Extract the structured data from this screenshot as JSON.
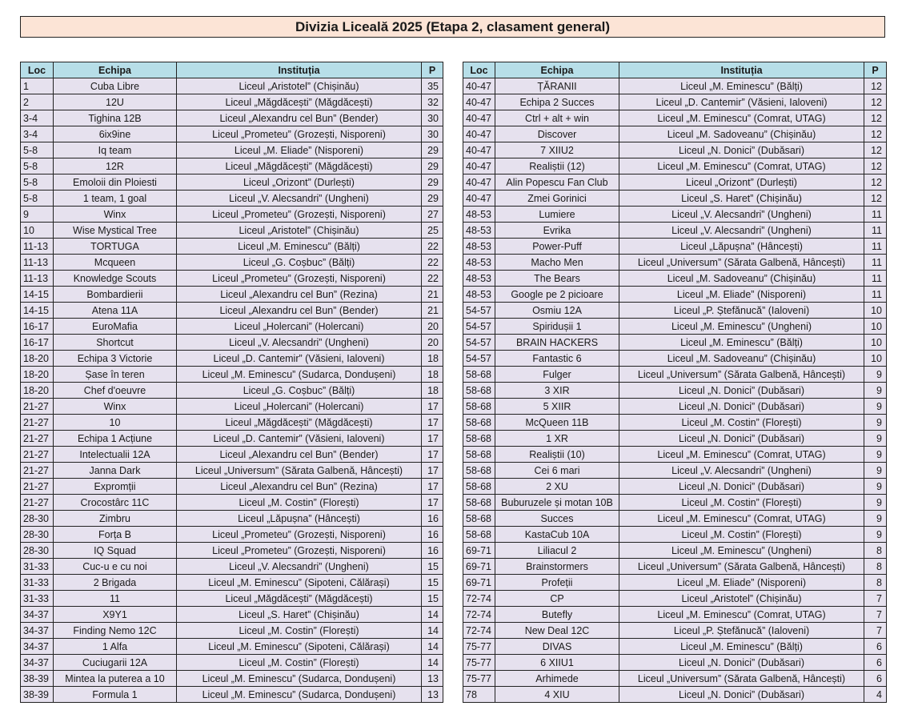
{
  "title": "Divizia Liceală 2025 (Etapa 2, clasament general)",
  "colors": {
    "title_bg": "#fce4d6",
    "header_bg": "#b7dee8",
    "row_bg": "#e6e1ee"
  },
  "columns": [
    "Loc",
    "Echipa",
    "Instituția",
    "P"
  ],
  "left_rows": [
    [
      "1",
      "Cuba Libre",
      "Liceul „Aristotel” (Chișinău)",
      "35"
    ],
    [
      "2",
      "12U",
      "Liceul „Măgdăcești” (Măgdăcești)",
      "32"
    ],
    [
      "3-4",
      "Tighina 12B",
      "Liceul „Alexandru cel Bun” (Bender)",
      "30"
    ],
    [
      "3-4",
      "6ix9ine",
      "Liceul „Prometeu” (Grozești, Nisporeni)",
      "30"
    ],
    [
      "5-8",
      "Iq team",
      "Liceul „M. Eliade” (Nisporeni)",
      "29"
    ],
    [
      "5-8",
      "12R",
      "Liceul „Măgdăcești” (Măgdăcești)",
      "29"
    ],
    [
      "5-8",
      "Emoloii din Ploiesti",
      "Liceul „Orizont” (Durlești)",
      "29"
    ],
    [
      "5-8",
      "1 team, 1 goal",
      "Liceul „V. Alecsandri” (Ungheni)",
      "29"
    ],
    [
      "9",
      "Winx",
      "Liceul „Prometeu” (Grozești, Nisporeni)",
      "27"
    ],
    [
      "10",
      "Wise Mystical Tree",
      "Liceul „Aristotel” (Chișinău)",
      "25"
    ],
    [
      "11-13",
      "TORTUGA",
      "Liceul „M. Eminescu” (Bălți)",
      "22"
    ],
    [
      "11-13",
      "Mcqueen",
      "Liceul „G. Coșbuc” (Bălți)",
      "22"
    ],
    [
      "11-13",
      "Knowledge Scouts",
      "Liceul „Prometeu” (Grozești, Nisporeni)",
      "22"
    ],
    [
      "14-15",
      "Bombardierii",
      "Liceul „Alexandru cel Bun” (Rezina)",
      "21"
    ],
    [
      "14-15",
      "Atena 11A",
      "Liceul „Alexandru cel Bun” (Bender)",
      "21"
    ],
    [
      "16-17",
      "EuroMafia",
      "Liceul „Holercani” (Holercani)",
      "20"
    ],
    [
      "16-17",
      "Shortcut",
      "Liceul „V. Alecsandri” (Ungheni)",
      "20"
    ],
    [
      "18-20",
      "Echipa 3 Victorie",
      "Liceul „D. Cantemir” (Văsieni, Ialoveni)",
      "18"
    ],
    [
      "18-20",
      "Șase în teren",
      "Liceul „M. Eminescu” (Sudarca, Dondușeni)",
      "18"
    ],
    [
      "18-20",
      "Chef d'oeuvre",
      "Liceul „G. Coșbuc” (Bălți)",
      "18"
    ],
    [
      "21-27",
      "Winx",
      "Liceul „Holercani” (Holercani)",
      "17"
    ],
    [
      "21-27",
      "10",
      "Liceul „Măgdăcești” (Măgdăcești)",
      "17"
    ],
    [
      "21-27",
      "Echipa 1 Acțiune",
      "Liceul „D. Cantemir” (Văsieni, Ialoveni)",
      "17"
    ],
    [
      "21-27",
      "Intelectualii 12A",
      "Liceul „Alexandru cel Bun” (Bender)",
      "17"
    ],
    [
      "21-27",
      "Janna Dark",
      "Liceul „Universum” (Sărata Galbenă, Hâncești)",
      "17"
    ],
    [
      "21-27",
      "Expromții",
      "Liceul „Alexandru cel Bun” (Rezina)",
      "17"
    ],
    [
      "21-27",
      "Crocostârc 11C",
      "Liceul „M. Costin” (Florești)",
      "17"
    ],
    [
      "28-30",
      "Zimbru",
      "Liceul „Lăpușna” (Hâncești)",
      "16"
    ],
    [
      "28-30",
      "Forța B",
      "Liceul „Prometeu” (Grozești, Nisporeni)",
      "16"
    ],
    [
      "28-30",
      "IQ Squad",
      "Liceul „Prometeu” (Grozești, Nisporeni)",
      "16"
    ],
    [
      "31-33",
      "Cuc-u e cu noi",
      "Liceul „V. Alecsandri” (Ungheni)",
      "15"
    ],
    [
      "31-33",
      "2 Brigada",
      "Liceul „M. Eminescu” (Sipoteni, Călărași)",
      "15"
    ],
    [
      "31-33",
      "11",
      "Liceul „Măgdăcești” (Măgdăcești)",
      "15"
    ],
    [
      "34-37",
      "X9Y1",
      "Liceul „S. Haret” (Chișinău)",
      "14"
    ],
    [
      "34-37",
      "Finding Nemo 12C",
      "Liceul „M. Costin” (Florești)",
      "14"
    ],
    [
      "34-37",
      "1 Alfa",
      "Liceul „M. Eminescu” (Sipoteni, Călărași)",
      "14"
    ],
    [
      "34-37",
      "Cuciugarii 12A",
      "Liceul „M. Costin” (Florești)",
      "14"
    ],
    [
      "38-39",
      "Mintea la puterea a 10",
      "Liceul „M. Eminescu” (Sudarca, Dondușeni)",
      "13"
    ],
    [
      "38-39",
      "Formula 1",
      "Liceul „M. Eminescu” (Sudarca, Dondușeni)",
      "13"
    ]
  ],
  "right_rows": [
    [
      "40-47",
      "ȚĂRANII",
      "Liceul „M. Eminescu” (Bălți)",
      "12"
    ],
    [
      "40-47",
      "Echipa 2 Succes",
      "Liceul „D. Cantemir” (Văsieni, Ialoveni)",
      "12"
    ],
    [
      "40-47",
      "Ctrl + alt + win",
      "Liceul „M. Eminescu” (Comrat, UTAG)",
      "12"
    ],
    [
      "40-47",
      "Discover",
      "Liceul „M. Sadoveanu” (Chișinău)",
      "12"
    ],
    [
      "40-47",
      "7 XIIU2",
      "Liceul „N. Donici” (Dubăsari)",
      "12"
    ],
    [
      "40-47",
      "Realiștii (12)",
      "Liceul „M. Eminescu” (Comrat, UTAG)",
      "12"
    ],
    [
      "40-47",
      "Alin Popescu Fan Club",
      "Liceul „Orizont” (Durlești)",
      "12"
    ],
    [
      "40-47",
      "Zmei Gorinici",
      "Liceul „S. Haret” (Chișinău)",
      "12"
    ],
    [
      "48-53",
      "Lumiere",
      "Liceul „V. Alecsandri” (Ungheni)",
      "11"
    ],
    [
      "48-53",
      "Evrika",
      "Liceul „V. Alecsandri” (Ungheni)",
      "11"
    ],
    [
      "48-53",
      "Power-Puff",
      "Liceul „Lăpușna” (Hâncești)",
      "11"
    ],
    [
      "48-53",
      "Macho Men",
      "Liceul „Universum” (Sărata Galbenă, Hâncești)",
      "11"
    ],
    [
      "48-53",
      "The Bears",
      "Liceul „M. Sadoveanu” (Chișinău)",
      "11"
    ],
    [
      "48-53",
      "Google pe 2 picioare",
      "Liceul „M. Eliade” (Nisporeni)",
      "11"
    ],
    [
      "54-57",
      "Osmiu 12A",
      "Liceul „P. Ștefănucă” (Ialoveni)",
      "10"
    ],
    [
      "54-57",
      "Spiridușii 1",
      "Liceul „M. Eminescu” (Ungheni)",
      "10"
    ],
    [
      "54-57",
      "BRAIN HACKERS",
      "Liceul „M. Eminescu” (Bălți)",
      "10"
    ],
    [
      "54-57",
      "Fantastic 6",
      "Liceul „M. Sadoveanu” (Chișinău)",
      "10"
    ],
    [
      "58-68",
      "Fulger",
      "Liceul „Universum” (Sărata Galbenă, Hâncești)",
      "9"
    ],
    [
      "58-68",
      "3 XIR",
      "Liceul „N. Donici” (Dubăsari)",
      "9"
    ],
    [
      "58-68",
      "5 XIIR",
      "Liceul „N. Donici” (Dubăsari)",
      "9"
    ],
    [
      "58-68",
      "McQueen 11B",
      "Liceul „M. Costin” (Florești)",
      "9"
    ],
    [
      "58-68",
      "1 XR",
      "Liceul „N. Donici” (Dubăsari)",
      "9"
    ],
    [
      "58-68",
      "Realiștii (10)",
      "Liceul „M. Eminescu” (Comrat, UTAG)",
      "9"
    ],
    [
      "58-68",
      "Cei 6 mari",
      "Liceul „V. Alecsandri” (Ungheni)",
      "9"
    ],
    [
      "58-68",
      "2 XU",
      "Liceul „N. Donici” (Dubăsari)",
      "9"
    ],
    [
      "58-68",
      "Buburuzele și motan 10B",
      "Liceul „M. Costin” (Florești)",
      "9"
    ],
    [
      "58-68",
      "Succes",
      "Liceul „M. Eminescu” (Comrat, UTAG)",
      "9"
    ],
    [
      "58-68",
      "KastaCub 10A",
      "Liceul „M. Costin” (Florești)",
      "9"
    ],
    [
      "69-71",
      "Liliacul 2",
      "Liceul „M. Eminescu” (Ungheni)",
      "8"
    ],
    [
      "69-71",
      "Brainstormers",
      "Liceul „Universum” (Sărata Galbenă, Hâncești)",
      "8"
    ],
    [
      "69-71",
      "Profeții",
      "Liceul „M. Eliade” (Nisporeni)",
      "8"
    ],
    [
      "72-74",
      "CP",
      "Liceul „Aristotel” (Chișinău)",
      "7"
    ],
    [
      "72-74",
      "Butefly",
      "Liceul „M. Eminescu” (Comrat, UTAG)",
      "7"
    ],
    [
      "72-74",
      "New Deal 12C",
      "Liceul „P. Ștefănucă” (Ialoveni)",
      "7"
    ],
    [
      "75-77",
      "DIVAS",
      "Liceul „M. Eminescu” (Bălți)",
      "6"
    ],
    [
      "75-77",
      "6 XIIU1",
      "Liceul „N. Donici” (Dubăsari)",
      "6"
    ],
    [
      "75-77",
      "Arhimede",
      "Liceul „Universum” (Sărata Galbenă, Hâncești)",
      "6"
    ],
    [
      "78",
      "4 XIU",
      "Liceul „N. Donici” (Dubăsari)",
      "4"
    ]
  ]
}
